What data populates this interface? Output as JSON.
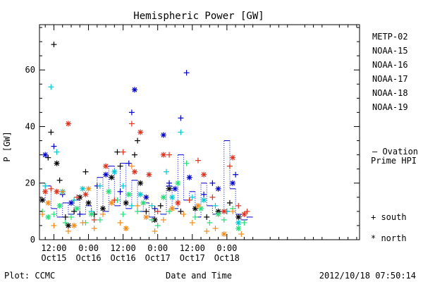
{
  "chart_data": {
    "type": "scatter",
    "title": "Hemispheric Power [GW]",
    "xlabel": "Date and Time",
    "ylabel": "P [GW]",
    "ylim": [
      0,
      76
    ],
    "xlim_hours": [
      -17,
      94
    ],
    "x_ticks": [
      {
        "h": -12,
        "line1": "12:00",
        "line2": "Oct15"
      },
      {
        "h": 0,
        "line1": "0:00",
        "line2": "Oct16"
      },
      {
        "h": 12,
        "line1": "12:00",
        "line2": "Oct16"
      },
      {
        "h": 24,
        "line1": "0:00",
        "line2": "Oct17"
      },
      {
        "h": 36,
        "line1": "12:00",
        "line2": "Oct17"
      },
      {
        "h": 48,
        "line1": "0:00",
        "line2": "Oct18"
      }
    ],
    "y_ticks": [
      0,
      20,
      40,
      60
    ],
    "marker_legend": [
      {
        "symbol": "+",
        "label": "south"
      },
      {
        "symbol": "*",
        "label": "north"
      }
    ],
    "ovation_legend": "— Ovation Prime HPI",
    "series": [
      {
        "name": "METP-02",
        "color": "#000000",
        "points": [
          {
            "h": -16,
            "v": 14,
            "m": "*"
          },
          {
            "h": -14,
            "v": 29,
            "m": "+"
          },
          {
            "h": -13,
            "v": 38,
            "m": "+"
          },
          {
            "h": -12,
            "v": 69,
            "m": "+"
          },
          {
            "h": -11,
            "v": 27,
            "m": "*"
          },
          {
            "h": -10,
            "v": 21,
            "m": "+"
          },
          {
            "h": -8,
            "v": 8,
            "m": "+"
          },
          {
            "h": -7,
            "v": 5,
            "m": "*"
          },
          {
            "h": -5,
            "v": 10,
            "m": "+"
          },
          {
            "h": -3,
            "v": 15,
            "m": "*"
          },
          {
            "h": -1,
            "v": 24,
            "m": "+"
          },
          {
            "h": 0,
            "v": 13,
            "m": "*"
          },
          {
            "h": 2,
            "v": 9,
            "m": "+"
          },
          {
            "h": 5,
            "v": 11,
            "m": "*"
          },
          {
            "h": 8,
            "v": 22,
            "m": "*"
          },
          {
            "h": 10,
            "v": 31,
            "m": "+"
          },
          {
            "h": 11,
            "v": 26,
            "m": "+"
          },
          {
            "h": 13,
            "v": 13,
            "m": "*"
          },
          {
            "h": 16,
            "v": 30,
            "m": "+"
          },
          {
            "h": 17,
            "v": 35,
            "m": "+"
          },
          {
            "h": 18,
            "v": 20,
            "m": "*"
          },
          {
            "h": 20,
            "v": 10,
            "m": "+"
          },
          {
            "h": 23,
            "v": 7,
            "m": "*"
          },
          {
            "h": 25,
            "v": 12,
            "m": "+"
          },
          {
            "h": 28,
            "v": 18,
            "m": "*"
          },
          {
            "h": 32,
            "v": 10,
            "m": "+"
          },
          {
            "h": 37,
            "v": 11,
            "m": "*"
          },
          {
            "h": 41,
            "v": 8,
            "m": "+"
          },
          {
            "h": 45,
            "v": 10,
            "m": "*"
          },
          {
            "h": 49,
            "v": 13,
            "m": "+"
          },
          {
            "h": 52,
            "v": 8,
            "m": "*"
          }
        ]
      },
      {
        "name": "NOAA-15",
        "color": "#0000c8",
        "points": [
          {
            "h": -15,
            "v": 30,
            "m": "*"
          },
          {
            "h": -12,
            "v": 33,
            "m": "+"
          },
          {
            "h": -9,
            "v": 16,
            "m": "+"
          },
          {
            "h": -6,
            "v": 13,
            "m": "*"
          },
          {
            "h": -3,
            "v": 9,
            "m": "+"
          },
          {
            "h": 3,
            "v": 19,
            "m": "+"
          },
          {
            "h": 6,
            "v": 23,
            "m": "*"
          },
          {
            "h": 11,
            "v": 17,
            "m": "+"
          },
          {
            "h": 14,
            "v": 27,
            "m": "+"
          },
          {
            "h": 15,
            "v": 45,
            "m": "+"
          },
          {
            "h": 16,
            "v": 53,
            "m": "*"
          },
          {
            "h": 20,
            "v": 15,
            "m": "*"
          },
          {
            "h": 23,
            "v": 11,
            "m": "+"
          },
          {
            "h": 26,
            "v": 37,
            "m": "*"
          },
          {
            "h": 28,
            "v": 20,
            "m": "+"
          },
          {
            "h": 30,
            "v": 18,
            "m": "*"
          },
          {
            "h": 32,
            "v": 43,
            "m": "+"
          },
          {
            "h": 34,
            "v": 59,
            "m": "+"
          },
          {
            "h": 35,
            "v": 22,
            "m": "*"
          },
          {
            "h": 40,
            "v": 16,
            "m": "+"
          },
          {
            "h": 43,
            "v": 20,
            "m": "+"
          },
          {
            "h": 45,
            "v": 18,
            "m": "*"
          },
          {
            "h": 48,
            "v": 10,
            "m": "+"
          },
          {
            "h": 50,
            "v": 20,
            "m": "*"
          },
          {
            "h": 51,
            "v": 23,
            "m": "+"
          }
        ]
      },
      {
        "name": "NOAA-16",
        "color": "#00c8d2",
        "points": [
          {
            "h": -15,
            "v": 19,
            "m": "+"
          },
          {
            "h": -13,
            "v": 54,
            "m": "+"
          },
          {
            "h": -11,
            "v": 31,
            "m": "+"
          },
          {
            "h": -9,
            "v": 17,
            "m": "*"
          },
          {
            "h": -5,
            "v": 14,
            "m": "+"
          },
          {
            "h": -2,
            "v": 18,
            "m": "*"
          },
          {
            "h": 1,
            "v": 10,
            "m": "+"
          },
          {
            "h": 4,
            "v": 19,
            "m": "+"
          },
          {
            "h": 9,
            "v": 24,
            "m": "*"
          },
          {
            "h": 12,
            "v": 19,
            "m": "+"
          },
          {
            "h": 15,
            "v": 12,
            "m": "+"
          },
          {
            "h": 18,
            "v": 16,
            "m": "*"
          },
          {
            "h": 22,
            "v": 12,
            "m": "+"
          },
          {
            "h": 27,
            "v": 24,
            "m": "+"
          },
          {
            "h": 29,
            "v": 15,
            "m": "*"
          },
          {
            "h": 32,
            "v": 38,
            "m": "+"
          },
          {
            "h": 36,
            "v": 15,
            "m": "+"
          },
          {
            "h": 40,
            "v": 14,
            "m": "*"
          },
          {
            "h": 44,
            "v": 12,
            "m": "+"
          },
          {
            "h": 48,
            "v": 10,
            "m": "+"
          },
          {
            "h": 52,
            "v": 6,
            "m": "*"
          }
        ]
      },
      {
        "name": "NOAA-17",
        "color": "#28dc78",
        "points": [
          {
            "h": -16,
            "v": 10,
            "m": "+"
          },
          {
            "h": -14,
            "v": 8,
            "m": "*"
          },
          {
            "h": -12,
            "v": 9,
            "m": "+"
          },
          {
            "h": -10,
            "v": 12,
            "m": "*"
          },
          {
            "h": -8,
            "v": 6,
            "m": "+"
          },
          {
            "h": -6,
            "v": 8,
            "m": "+"
          },
          {
            "h": -4,
            "v": 11,
            "m": "*"
          },
          {
            "h": -1,
            "v": 6,
            "m": "+"
          },
          {
            "h": 1,
            "v": 9,
            "m": "*"
          },
          {
            "h": 4,
            "v": 7,
            "m": "+"
          },
          {
            "h": 7,
            "v": 17,
            "m": "*"
          },
          {
            "h": 10,
            "v": 14,
            "m": "+"
          },
          {
            "h": 12,
            "v": 9,
            "m": "+"
          },
          {
            "h": 14,
            "v": 16,
            "m": "*"
          },
          {
            "h": 17,
            "v": 10,
            "m": "+"
          },
          {
            "h": 19,
            "v": 13,
            "m": "*"
          },
          {
            "h": 22,
            "v": 7,
            "m": "+"
          },
          {
            "h": 24,
            "v": 5,
            "m": "+"
          },
          {
            "h": 26,
            "v": 15,
            "m": "*"
          },
          {
            "h": 28,
            "v": 10,
            "m": "+"
          },
          {
            "h": 31,
            "v": 20,
            "m": "*"
          },
          {
            "h": 34,
            "v": 27,
            "m": "+"
          },
          {
            "h": 37,
            "v": 8,
            "m": "+"
          },
          {
            "h": 39,
            "v": 11,
            "m": "*"
          },
          {
            "h": 42,
            "v": 6,
            "m": "+"
          },
          {
            "h": 45,
            "v": 9,
            "m": "*"
          },
          {
            "h": 47,
            "v": 7,
            "m": "+"
          },
          {
            "h": 50,
            "v": 11,
            "m": "+"
          },
          {
            "h": 52,
            "v": 4,
            "m": "*"
          },
          {
            "h": 54,
            "v": 6,
            "m": "+"
          }
        ]
      },
      {
        "name": "NOAA-18",
        "color": "#f08c1e",
        "points": [
          {
            "h": -16,
            "v": 9,
            "m": "+"
          },
          {
            "h": -14,
            "v": 13,
            "m": "*"
          },
          {
            "h": -12,
            "v": 5,
            "m": "+"
          },
          {
            "h": -9,
            "v": 17,
            "m": "+"
          },
          {
            "h": -7,
            "v": 3,
            "m": "+"
          },
          {
            "h": -5,
            "v": 5,
            "m": "*"
          },
          {
            "h": -2,
            "v": 6,
            "m": "+"
          },
          {
            "h": 0,
            "v": 18,
            "m": "*"
          },
          {
            "h": 2,
            "v": 4,
            "m": "+"
          },
          {
            "h": 5,
            "v": 9,
            "m": "+"
          },
          {
            "h": 8,
            "v": 13,
            "m": "*"
          },
          {
            "h": 11,
            "v": 6,
            "m": "+"
          },
          {
            "h": 13,
            "v": 4,
            "m": "*"
          },
          {
            "h": 15,
            "v": 26,
            "m": "+"
          },
          {
            "h": 17,
            "v": 12,
            "m": "+"
          },
          {
            "h": 20,
            "v": 8,
            "m": "*"
          },
          {
            "h": 23,
            "v": 3,
            "m": "+"
          },
          {
            "h": 26,
            "v": 7,
            "m": "+"
          },
          {
            "h": 29,
            "v": 11,
            "m": "*"
          },
          {
            "h": 33,
            "v": 9,
            "m": "+"
          },
          {
            "h": 36,
            "v": 6,
            "m": "+"
          },
          {
            "h": 38,
            "v": 12,
            "m": "*"
          },
          {
            "h": 41,
            "v": 3,
            "m": "+"
          },
          {
            "h": 44,
            "v": 4,
            "m": "+"
          },
          {
            "h": 47,
            "v": 2,
            "m": "*"
          },
          {
            "h": 50,
            "v": 10,
            "m": "+"
          },
          {
            "h": 53,
            "v": 2,
            "m": "+"
          }
        ]
      },
      {
        "name": "NOAA-19",
        "color": "#dc321e",
        "points": [
          {
            "h": -15,
            "v": 17,
            "m": "*"
          },
          {
            "h": -13,
            "v": 18,
            "m": "+"
          },
          {
            "h": -11,
            "v": 17,
            "m": "*"
          },
          {
            "h": -7,
            "v": 41,
            "m": "*"
          },
          {
            "h": -4,
            "v": 15,
            "m": "+"
          },
          {
            "h": -1,
            "v": 16,
            "m": "*"
          },
          {
            "h": 2,
            "v": 7,
            "m": "+"
          },
          {
            "h": 6,
            "v": 26,
            "m": "*"
          },
          {
            "h": 9,
            "v": 14,
            "m": "+"
          },
          {
            "h": 12,
            "v": 31,
            "m": "+"
          },
          {
            "h": 15,
            "v": 41,
            "m": "+"
          },
          {
            "h": 16,
            "v": 24,
            "m": "*"
          },
          {
            "h": 18,
            "v": 38,
            "m": "*"
          },
          {
            "h": 21,
            "v": 23,
            "m": "*"
          },
          {
            "h": 24,
            "v": 10,
            "m": "+"
          },
          {
            "h": 26,
            "v": 30,
            "m": "*"
          },
          {
            "h": 28,
            "v": 30,
            "m": "+"
          },
          {
            "h": 31,
            "v": 13,
            "m": "*"
          },
          {
            "h": 35,
            "v": 14,
            "m": "+"
          },
          {
            "h": 38,
            "v": 28,
            "m": "+"
          },
          {
            "h": 40,
            "v": 23,
            "m": "*"
          },
          {
            "h": 43,
            "v": 15,
            "m": "+"
          },
          {
            "h": 47,
            "v": 10,
            "m": "*"
          },
          {
            "h": 49,
            "v": 26,
            "m": "+"
          },
          {
            "h": 50,
            "v": 29,
            "m": "*"
          },
          {
            "h": 52,
            "v": 12,
            "m": "+"
          },
          {
            "h": 54,
            "v": 9,
            "m": "*"
          },
          {
            "h": 55,
            "v": 10,
            "m": "+"
          }
        ]
      }
    ],
    "ovation": {
      "name": "Ovation Prime HPI",
      "color": "#0000c8",
      "steps": [
        {
          "h0": -17,
          "h1": -15,
          "v": 14
        },
        {
          "h0": -15,
          "h1": -13,
          "v": 19
        },
        {
          "h0": -13,
          "h1": -11,
          "v": 11
        },
        {
          "h0": -11,
          "h1": -9,
          "v": 8
        },
        {
          "h0": -9,
          "h1": -7,
          "v": 13
        },
        {
          "h0": -7,
          "h1": -5,
          "v": 9
        },
        {
          "h0": -5,
          "h1": -3,
          "v": 14
        },
        {
          "h0": -3,
          "h1": -1,
          "v": 9
        },
        {
          "h0": -1,
          "h1": 1,
          "v": 12
        },
        {
          "h0": 1,
          "h1": 3,
          "v": 9
        },
        {
          "h0": 3,
          "h1": 5,
          "v": 22
        },
        {
          "h0": 5,
          "h1": 7,
          "v": 10
        },
        {
          "h0": 7,
          "h1": 9,
          "v": 26
        },
        {
          "h0": 9,
          "h1": 11,
          "v": 12
        },
        {
          "h0": 11,
          "h1": 13,
          "v": 27
        },
        {
          "h0": 13,
          "h1": 15,
          "v": 11
        },
        {
          "h0": 15,
          "h1": 17,
          "v": 21
        },
        {
          "h0": 17,
          "h1": 19,
          "v": 10
        },
        {
          "h0": 19,
          "h1": 21,
          "v": 13
        },
        {
          "h0": 21,
          "h1": 23,
          "v": 8
        },
        {
          "h0": 23,
          "h1": 25,
          "v": 10
        },
        {
          "h0": 25,
          "h1": 27,
          "v": 9
        },
        {
          "h0": 27,
          "h1": 29,
          "v": 19
        },
        {
          "h0": 29,
          "h1": 31,
          "v": 11
        },
        {
          "h0": 31,
          "h1": 33,
          "v": 30
        },
        {
          "h0": 33,
          "h1": 35,
          "v": 14
        },
        {
          "h0": 35,
          "h1": 37,
          "v": 17
        },
        {
          "h0": 37,
          "h1": 39,
          "v": 8
        },
        {
          "h0": 39,
          "h1": 41,
          "v": 20
        },
        {
          "h0": 41,
          "h1": 43,
          "v": 12
        },
        {
          "h0": 43,
          "h1": 45,
          "v": 9
        },
        {
          "h0": 45,
          "h1": 47,
          "v": 10
        },
        {
          "h0": 47,
          "h1": 49,
          "v": 35
        },
        {
          "h0": 49,
          "h1": 51,
          "v": 18
        },
        {
          "h0": 51,
          "h1": 53,
          "v": 9
        },
        {
          "h0": 53,
          "h1": 55,
          "v": 7
        },
        {
          "h0": 55,
          "h1": 57,
          "v": 8
        }
      ]
    }
  },
  "footer": {
    "left": "Plot: CCMC",
    "right": "2012/10/18 07:50:14"
  }
}
